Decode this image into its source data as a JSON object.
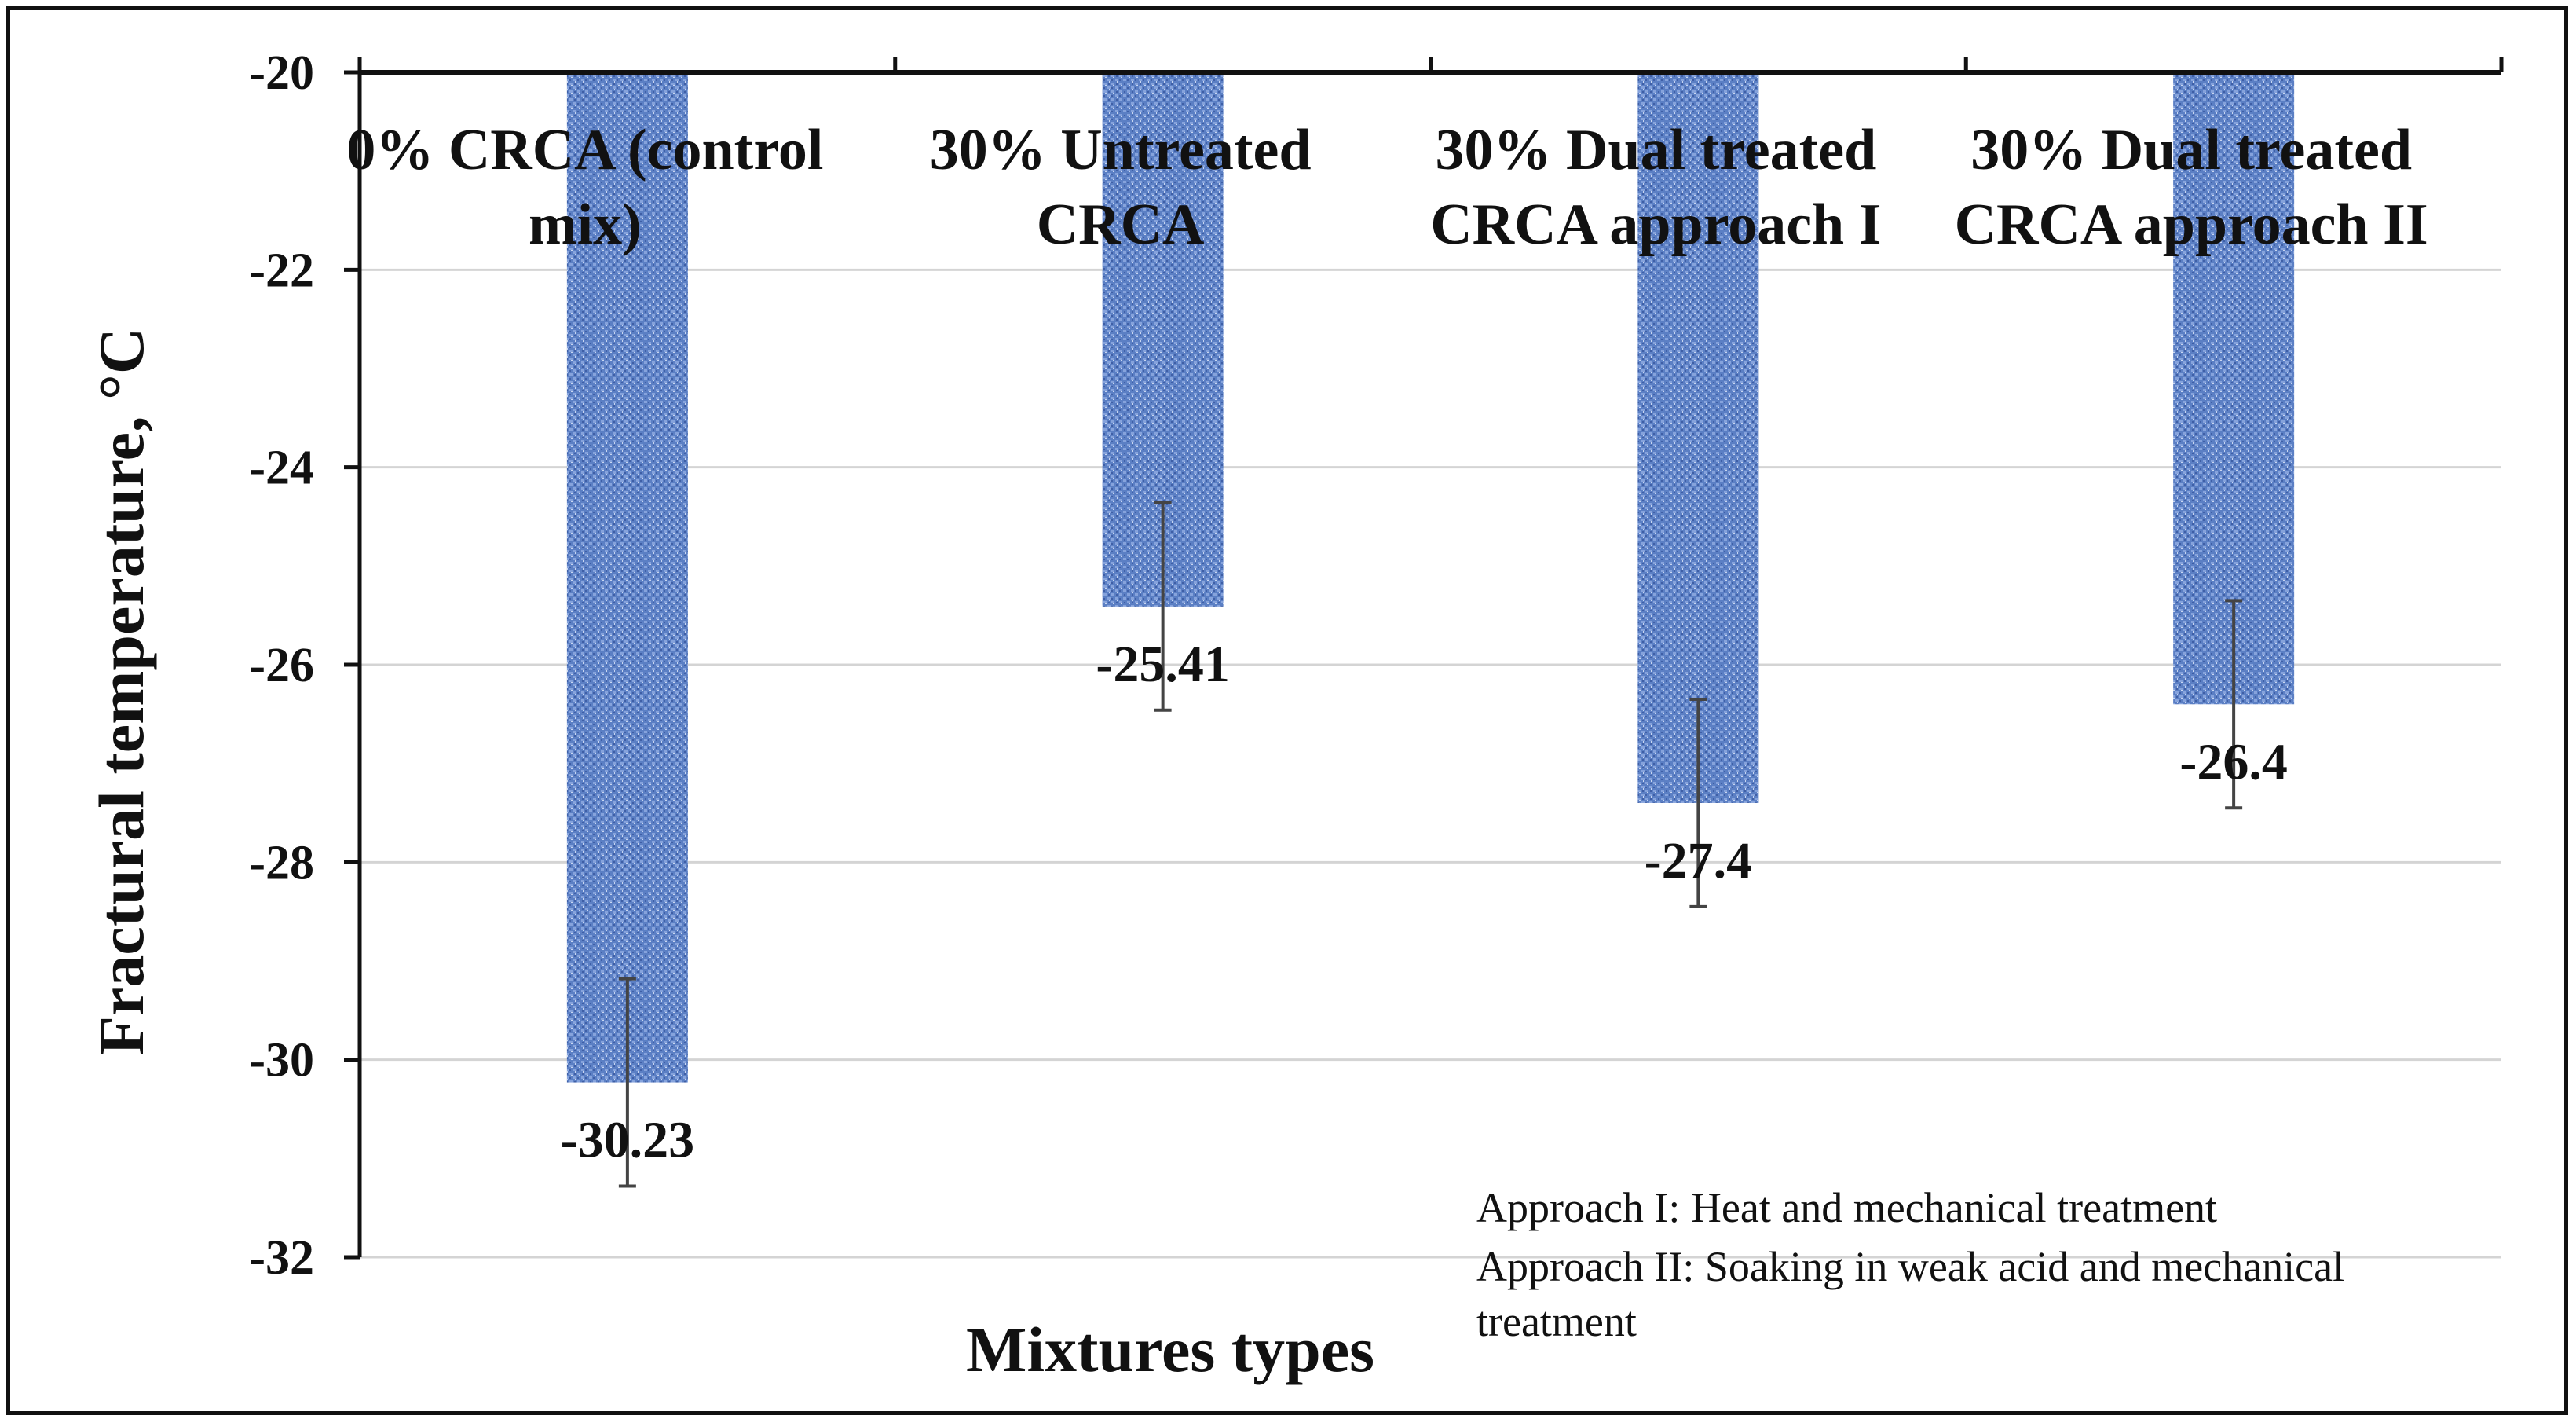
{
  "chart_data": {
    "type": "bar",
    "orientation": "vertical-hanging-from-top",
    "title": "",
    "xlabel": "Mixtures types",
    "ylabel": "Fractural temperature, °C",
    "ylim": [
      -32,
      -20
    ],
    "yticks": [
      -20,
      -22,
      -24,
      -26,
      -28,
      -30,
      -32
    ],
    "ytick_labels": [
      "-20",
      "-22",
      "-24",
      "-26",
      "-28",
      "-30",
      "-32"
    ],
    "grid": true,
    "categories": [
      [
        "0% CRCA (control",
        "mix)"
      ],
      [
        "30% Untreated",
        "CRCA"
      ],
      [
        "30% Dual treated",
        "CRCA approach I"
      ],
      [
        "30% Dual treated",
        "CRCA approach II"
      ]
    ],
    "values": [
      -30.23,
      -25.41,
      -27.4,
      -26.4
    ],
    "value_labels": [
      "-30.23",
      "-25.41",
      "-27.4",
      "-26.4"
    ],
    "error": [
      1.05,
      1.05,
      1.05,
      1.05
    ],
    "bar_color": "#5b7fc4",
    "notes": [
      "Approach I: Heat and mechanical treatment",
      "Approach II: Soaking in weak acid and mechanical",
      "treatment"
    ]
  }
}
